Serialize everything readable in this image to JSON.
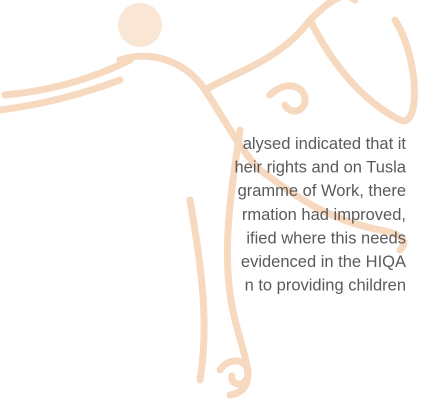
{
  "document": {
    "paragraph_lines": [
      "alysed indicated that it",
      "heir rights and on Tusla",
      "gramme of Work, there",
      "rmation had improved,",
      "ified where this needs",
      "evidenced in the HIQA",
      "n to providing children"
    ]
  }
}
